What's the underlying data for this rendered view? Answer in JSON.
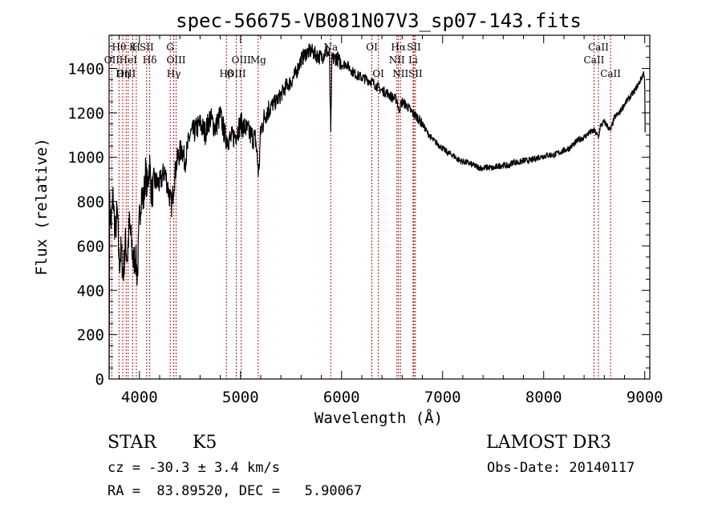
{
  "chart_data": {
    "type": "line",
    "title": "spec-56675-VB081N07V3_sp07-143.fits",
    "xlabel": "Wavelength (Å)",
    "ylabel": "Flux (relative)",
    "xlim": [
      3700,
      9050
    ],
    "ylim": [
      0,
      1550
    ],
    "x_ticks": [
      4000,
      5000,
      6000,
      7000,
      8000,
      9000
    ],
    "y_ticks": [
      0,
      200,
      400,
      600,
      800,
      1000,
      1200,
      1400
    ],
    "spectrum_anchors": [
      [
        3700,
        0
      ],
      [
        3705,
        780
      ],
      [
        3720,
        700
      ],
      [
        3740,
        820
      ],
      [
        3760,
        650
      ],
      [
        3780,
        760
      ],
      [
        3800,
        520
      ],
      [
        3820,
        580
      ],
      [
        3840,
        460
      ],
      [
        3860,
        620
      ],
      [
        3880,
        540
      ],
      [
        3900,
        700
      ],
      [
        3920,
        620
      ],
      [
        3940,
        520
      ],
      [
        3960,
        560
      ],
      [
        3980,
        460
      ],
      [
        4000,
        720
      ],
      [
        4020,
        840
      ],
      [
        4040,
        800
      ],
      [
        4060,
        930
      ],
      [
        4080,
        860
      ],
      [
        4100,
        980
      ],
      [
        4120,
        830
      ],
      [
        4150,
        890
      ],
      [
        4200,
        880
      ],
      [
        4250,
        940
      ],
      [
        4300,
        820
      ],
      [
        4320,
        780
      ],
      [
        4350,
        920
      ],
      [
        4380,
        1000
      ],
      [
        4420,
        1040
      ],
      [
        4450,
        980
      ],
      [
        4500,
        1100
      ],
      [
        4550,
        1120
      ],
      [
        4600,
        1150
      ],
      [
        4650,
        1110
      ],
      [
        4700,
        1180
      ],
      [
        4750,
        1130
      ],
      [
        4800,
        1190
      ],
      [
        4850,
        1090
      ],
      [
        4900,
        1080
      ],
      [
        4950,
        1100
      ],
      [
        5000,
        1150
      ],
      [
        5050,
        1130
      ],
      [
        5100,
        1100
      ],
      [
        5150,
        1080
      ],
      [
        5180,
        920
      ],
      [
        5200,
        1120
      ],
      [
        5250,
        1200
      ],
      [
        5300,
        1230
      ],
      [
        5350,
        1250
      ],
      [
        5400,
        1280
      ],
      [
        5450,
        1320
      ],
      [
        5500,
        1340
      ],
      [
        5550,
        1380
      ],
      [
        5600,
        1440
      ],
      [
        5650,
        1470
      ],
      [
        5700,
        1480
      ],
      [
        5750,
        1460
      ],
      [
        5800,
        1450
      ],
      [
        5850,
        1480
      ],
      [
        5880,
        1460
      ],
      [
        5893,
        1100
      ],
      [
        5905,
        1440
      ],
      [
        5950,
        1450
      ],
      [
        6000,
        1420
      ],
      [
        6050,
        1420
      ],
      [
        6100,
        1390
      ],
      [
        6150,
        1370
      ],
      [
        6200,
        1360
      ],
      [
        6250,
        1350
      ],
      [
        6300,
        1340
      ],
      [
        6350,
        1320
      ],
      [
        6400,
        1300
      ],
      [
        6450,
        1290
      ],
      [
        6500,
        1270
      ],
      [
        6550,
        1260
      ],
      [
        6563,
        1210
      ],
      [
        6600,
        1250
      ],
      [
        6650,
        1230
      ],
      [
        6700,
        1200
      ],
      [
        6750,
        1180
      ],
      [
        6800,
        1150
      ],
      [
        6850,
        1110
      ],
      [
        6900,
        1080
      ],
      [
        6950,
        1060
      ],
      [
        7000,
        1040
      ],
      [
        7050,
        1020
      ],
      [
        7100,
        1010
      ],
      [
        7150,
        990
      ],
      [
        7200,
        980
      ],
      [
        7250,
        975
      ],
      [
        7300,
        965
      ],
      [
        7350,
        955
      ],
      [
        7400,
        950
      ],
      [
        7450,
        955
      ],
      [
        7500,
        950
      ],
      [
        7550,
        960
      ],
      [
        7600,
        965
      ],
      [
        7650,
        960
      ],
      [
        7700,
        980
      ],
      [
        7750,
        975
      ],
      [
        7800,
        985
      ],
      [
        7850,
        985
      ],
      [
        7900,
        990
      ],
      [
        7950,
        1000
      ],
      [
        8000,
        1005
      ],
      [
        8050,
        1010
      ],
      [
        8100,
        1010
      ],
      [
        8150,
        1020
      ],
      [
        8200,
        1030
      ],
      [
        8250,
        1040
      ],
      [
        8300,
        1060
      ],
      [
        8350,
        1080
      ],
      [
        8400,
        1090
      ],
      [
        8450,
        1110
      ],
      [
        8500,
        1120
      ],
      [
        8542,
        1090
      ],
      [
        8560,
        1140
      ],
      [
        8600,
        1160
      ],
      [
        8662,
        1120
      ],
      [
        8700,
        1180
      ],
      [
        8750,
        1200
      ],
      [
        8800,
        1240
      ],
      [
        8850,
        1270
      ],
      [
        8900,
        1300
      ],
      [
        8950,
        1340
      ],
      [
        8990,
        1380
      ],
      [
        9000,
        1360
      ],
      [
        9005,
        1050
      ]
    ],
    "spectral_lines": [
      {
        "label": "Hθ",
        "wavelength": 3798
      },
      {
        "label": "OII",
        "wavelength": 3727
      },
      {
        "label": "OIII",
        "wavelength": 3869
      },
      {
        "label": "K",
        "wavelength": 3934
      },
      {
        "label": "HeI",
        "wavelength": 3889
      },
      {
        "label": "Hη",
        "wavelength": 3835
      },
      {
        "label": "H",
        "wavelength": 3969
      },
      {
        "label": "Hδ",
        "wavelength": 4102
      },
      {
        "label": "SII",
        "wavelength": 4072
      },
      {
        "label": "OIII",
        "wavelength": 4363
      },
      {
        "label": "Hγ",
        "wavelength": 4340
      },
      {
        "label": "G",
        "wavelength": 4305
      },
      {
        "label": "OIII",
        "wavelength": 5007
      },
      {
        "label": "OIII",
        "wavelength": 4959
      },
      {
        "label": "Hβ",
        "wavelength": 4861
      },
      {
        "label": "Mg",
        "wavelength": 5175
      },
      {
        "label": "Na",
        "wavelength": 5893
      },
      {
        "label": "OI",
        "wavelength": 6300
      },
      {
        "label": "OI",
        "wavelength": 6364
      },
      {
        "label": "Hα",
        "wavelength": 6563
      },
      {
        "label": "NII",
        "wavelength": 6548
      },
      {
        "label": "NII",
        "wavelength": 6583
      },
      {
        "label": "SII",
        "wavelength": 6716
      },
      {
        "label": "Li",
        "wavelength": 6708
      },
      {
        "label": "SII",
        "wavelength": 6731
      },
      {
        "label": "CaII",
        "wavelength": 8542
      },
      {
        "label": "CaII",
        "wavelength": 8498
      },
      {
        "label": "CaII",
        "wavelength": 8662
      }
    ]
  },
  "info": {
    "object_type": "STAR",
    "subclass": "K5",
    "survey": "LAMOST DR3",
    "cz": "cz = -30.3 ± 3.4 km/s",
    "obs_date": "Obs-Date: 20140117",
    "coords": "RA =  83.89520, DEC =   5.90067"
  },
  "colors": {
    "spectrum": "#000000",
    "line_marker": "#b01010",
    "axes": "#000000"
  }
}
